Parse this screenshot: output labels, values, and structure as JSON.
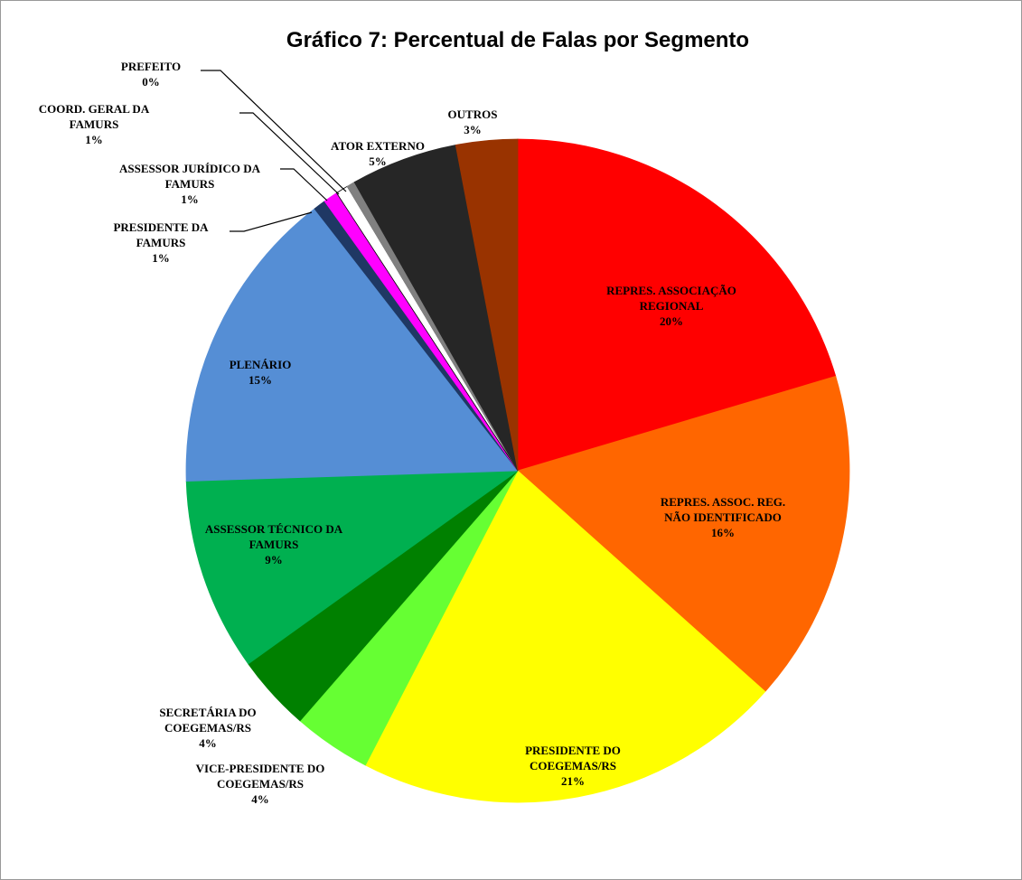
{
  "chart_data": {
    "type": "pie",
    "title": "Gráfico 7: Percentual de Falas por Segmento",
    "categories": [
      "REPRES. ASSOCIAÇÃO\nREGIONAL",
      "REPRES. ASSOC. REG.\nNÃO IDENTIFICADO",
      "PRESIDENTE DO\nCOEGEMAS/RS",
      "VICE-PRESIDENTE DO\nCOEGEMAS/RS",
      "SECRETÁRIA DO\nCOEGEMAS/RS",
      "ASSESSOR TÉCNICO DA\nFAMURS",
      "PLENÁRIO",
      "PRESIDENTE DA\nFAMURS",
      "ASSESSOR JURÍDICO DA\nFAMURS",
      "COORD. GERAL DA\nFAMURS",
      "PREFEITO",
      "ATOR EXTERNO",
      "OUTROS"
    ],
    "values": [
      20.4,
      16.2,
      21.0,
      3.8,
      3.7,
      9.4,
      15.0,
      0.6,
      0.7,
      0.6,
      0.4,
      5.2,
      3.0
    ],
    "value_labels": [
      "20%",
      "16%",
      "21%",
      "4%",
      "4%",
      "9%",
      "15%",
      "1%",
      "1%",
      "1%",
      "0%",
      "5%",
      "3%"
    ],
    "colors": [
      "#ff0000",
      "#ff6600",
      "#ffff00",
      "#66ff33",
      "#008000",
      "#00b050",
      "#558ed5",
      "#1f3864",
      "#ff00ff",
      "#ffffff",
      "#808080",
      "#262626",
      "#993300"
    ]
  }
}
